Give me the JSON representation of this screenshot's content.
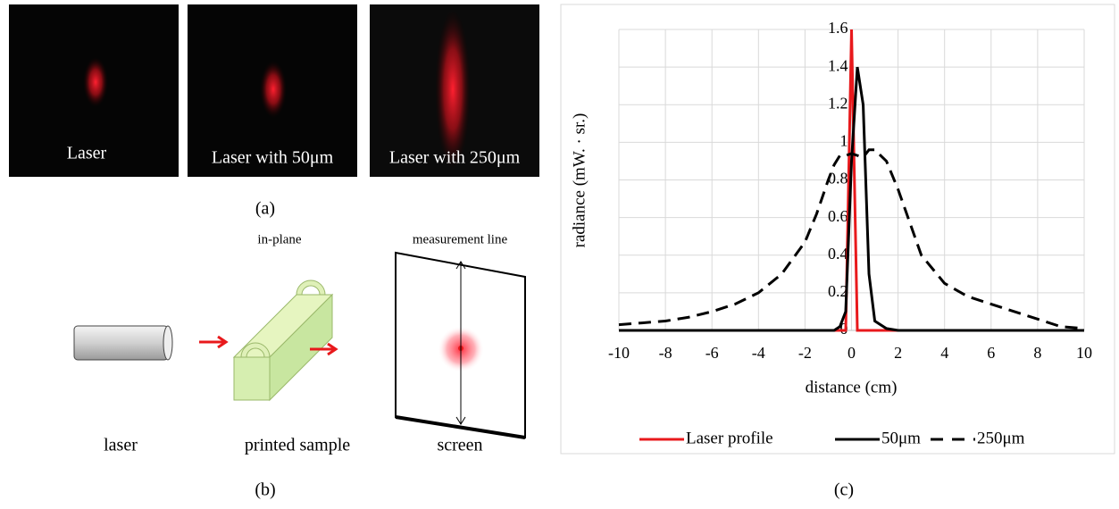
{
  "figure": {
    "panel_a": {
      "caption": "(a)",
      "images": [
        "Laser",
        "Laser with 50μm",
        "Laser with 250μm"
      ]
    },
    "panel_b": {
      "caption": "(b)",
      "in_plane": "in-plane",
      "measurement_line": "measurement line",
      "laser": "laser",
      "sample": "printed sample",
      "screen": "screen"
    },
    "panel_c": {
      "caption": "(c)"
    }
  },
  "chart_data": {
    "type": "line",
    "xlabel": "distance (cm)",
    "ylabel": "radiance (mW. · sr.)",
    "x": [
      -10,
      -9,
      -8,
      -7,
      -6,
      -5,
      -4,
      -3,
      -2,
      -1.5,
      -1,
      -0.75,
      -0.5,
      -0.25,
      0,
      0.25,
      0.5,
      0.75,
      1,
      1.5,
      2,
      3,
      4,
      5,
      6,
      7,
      8,
      9,
      10
    ],
    "series": [
      {
        "name": "Laser profile",
        "color": "#e8191c",
        "line_style": "solid",
        "values": [
          0,
          0,
          0,
          0,
          0,
          0,
          0,
          0,
          0,
          0,
          0,
          0,
          0,
          0,
          1.6,
          0,
          0,
          0,
          0,
          0,
          0,
          0,
          0,
          0,
          0,
          0,
          0,
          0,
          0
        ]
      },
      {
        "name": "50μm",
        "color": "#000000",
        "line_style": "solid",
        "values": [
          0,
          0,
          0,
          0,
          0,
          0,
          0,
          0,
          0,
          0,
          0,
          0,
          0.02,
          0.1,
          0.9,
          1.4,
          1.2,
          0.3,
          0.05,
          0.01,
          0,
          0,
          0,
          0,
          0,
          0,
          0,
          0,
          0
        ]
      },
      {
        "name": "250μm",
        "color": "#000000",
        "line_style": "dashed",
        "values": [
          0.03,
          0.04,
          0.05,
          0.07,
          0.1,
          0.14,
          0.2,
          0.3,
          0.47,
          0.62,
          0.8,
          0.88,
          0.93,
          0.93,
          0.94,
          0.93,
          0.92,
          0.96,
          0.96,
          0.9,
          0.75,
          0.4,
          0.25,
          0.18,
          0.14,
          0.1,
          0.06,
          0.02,
          0.01
        ]
      }
    ],
    "xlim": [
      -10,
      10
    ],
    "xticks": [
      -10,
      -8,
      -6,
      -4,
      -2,
      0,
      2,
      4,
      6,
      8,
      10
    ],
    "ylim": [
      0,
      1.6
    ],
    "yticks": [
      0,
      0.2,
      0.4,
      0.6,
      0.8,
      1,
      1.2,
      1.4,
      1.6
    ],
    "grid": true,
    "legend": "bottom"
  }
}
